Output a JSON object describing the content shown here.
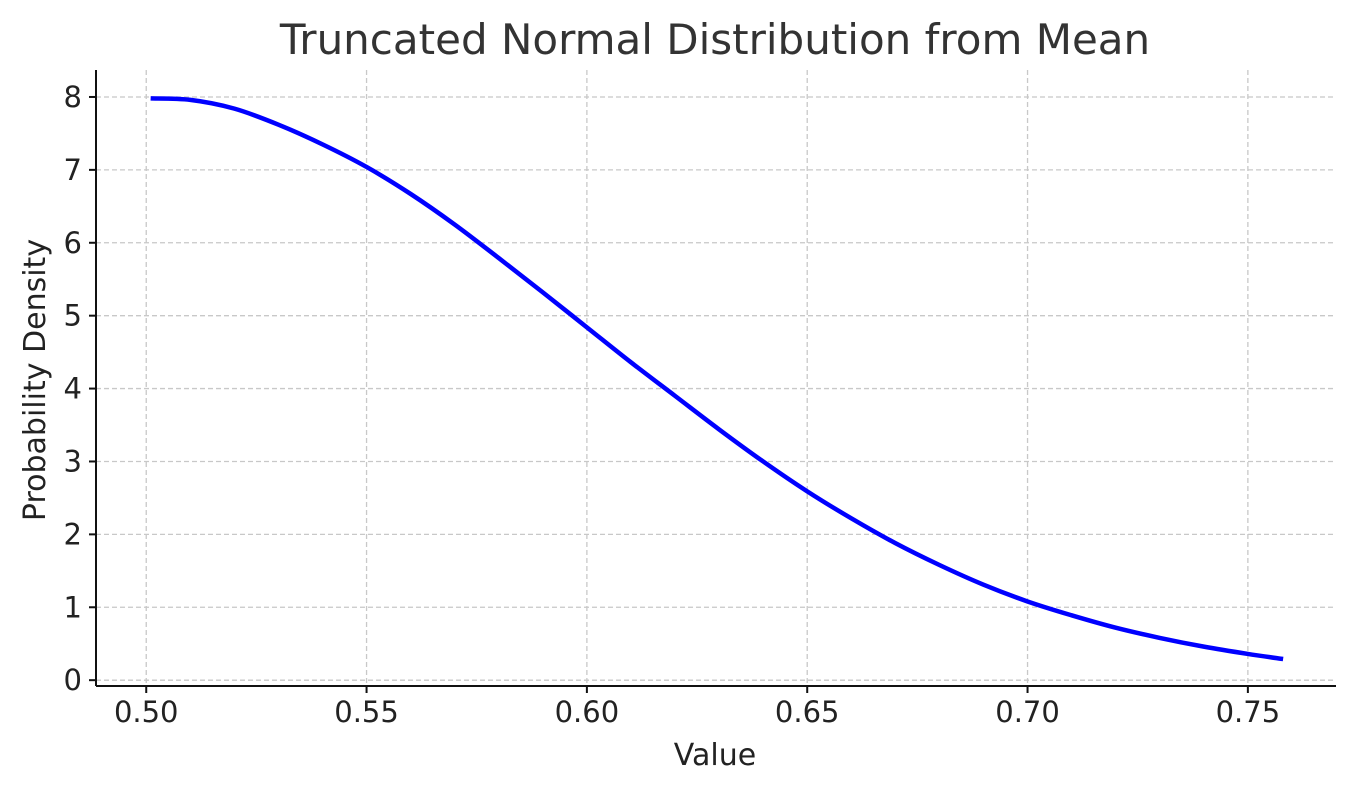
{
  "chart_data": {
    "type": "line",
    "title": "Truncated Normal Distribution from Mean",
    "xlabel": "Value",
    "ylabel": "Probability Density",
    "xlim": [
      0.4886,
      0.77
    ],
    "ylim": [
      -0.08,
      8.37
    ],
    "grid": true,
    "x_ticks": [
      0.5,
      0.55,
      0.6,
      0.65,
      0.7,
      0.75
    ],
    "x_tick_labels": [
      "0.50",
      "0.55",
      "0.60",
      "0.65",
      "0.70",
      "0.75"
    ],
    "y_ticks": [
      0,
      1,
      2,
      3,
      4,
      5,
      6,
      7,
      8
    ],
    "y_tick_labels": [
      "0",
      "1",
      "2",
      "3",
      "4",
      "5",
      "6",
      "7",
      "8"
    ],
    "colors": {
      "series": "#0000ff",
      "grid": "#c8c8c8",
      "axis": "#111111"
    },
    "series": [
      {
        "color": "#0000ff",
        "x": [
          0.501,
          0.51,
          0.52,
          0.53,
          0.54,
          0.55,
          0.56,
          0.57,
          0.58,
          0.59,
          0.6,
          0.61,
          0.62,
          0.63,
          0.64,
          0.65,
          0.66,
          0.67,
          0.68,
          0.69,
          0.7,
          0.71,
          0.72,
          0.73,
          0.74,
          0.75,
          0.758
        ],
        "y": [
          7.98,
          7.96,
          7.84,
          7.62,
          7.35,
          7.04,
          6.67,
          6.25,
          5.79,
          5.32,
          4.84,
          4.36,
          3.9,
          3.44,
          3.0,
          2.59,
          2.22,
          1.88,
          1.58,
          1.31,
          1.08,
          0.89,
          0.72,
          0.58,
          0.46,
          0.36,
          0.29
        ]
      }
    ]
  }
}
